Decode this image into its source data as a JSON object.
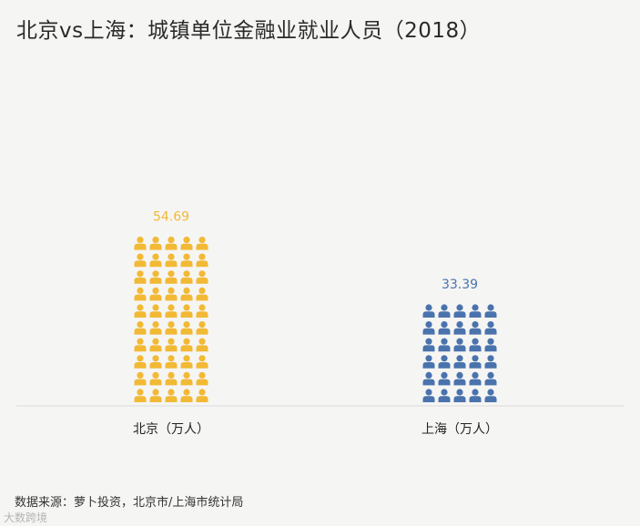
{
  "title": "北京vs上海：城镇单位金融业就业人员（2018）",
  "source": "数据来源：萝卜投资，北京市/上海市统计局",
  "watermark": "大数跨境",
  "chart_data": {
    "type": "bar",
    "style": "pictogram",
    "icon": "person-icon",
    "categories": [
      "北京（万人）",
      "上海（万人）"
    ],
    "values": [
      54.69,
      33.39
    ],
    "value_labels": [
      "54.69",
      "33.39"
    ],
    "colors": [
      "#f2b935",
      "#4a73ad"
    ],
    "title": "",
    "xlabel": "",
    "ylabel": "",
    "grid": false,
    "legend": "none"
  }
}
